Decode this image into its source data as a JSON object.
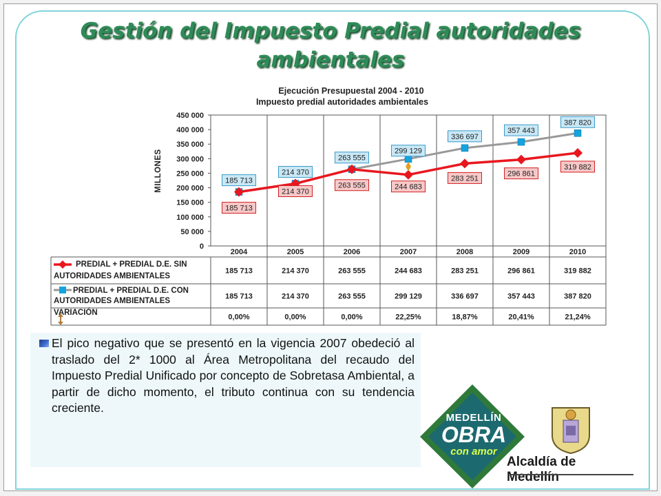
{
  "slide": {
    "title_line1": "Gestión del Impuesto Predial autoridades",
    "title_line2": "ambientales"
  },
  "chart_data": {
    "type": "line",
    "title": "Ejecución Presupuestal 2004 - 2010",
    "subtitle": "Impuesto predial autoridades ambientales",
    "ylabel": "MILLONES",
    "xlabel": "",
    "categories": [
      "2004",
      "2005",
      "2006",
      "2007",
      "2008",
      "2009",
      "2010"
    ],
    "ylim": [
      0,
      450000
    ],
    "yticks": [
      0,
      50000,
      100000,
      150000,
      200000,
      250000,
      300000,
      350000,
      400000,
      450000
    ],
    "ytick_labels": [
      "0",
      "50 000",
      "100 000",
      "150 000",
      "200 000",
      "250 000",
      "300 000",
      "350 000",
      "400 000",
      "450 000"
    ],
    "grid": "vertical",
    "series": [
      {
        "name": "PREDIAL + PREDIAL D.E. SIN AUTORIDADES AMBIENTALES",
        "name_line1": "PREDIAL + PREDIAL D.E. SIN",
        "name_line2": "AUTORIDADES AMBIENTALES",
        "color": "#e8171f",
        "marker": "diamond",
        "values": [
          185713,
          214370,
          263555,
          244683,
          283251,
          296861,
          319882
        ],
        "labels": [
          "185 713",
          "214 370",
          "263 555",
          "244 683",
          "283 251",
          "296 861",
          "319 882"
        ]
      },
      {
        "name": "PREDIAL + PREDIAL D.E. CON AUTORIDADES AMBIENTALES",
        "name_line1": "PREDIAL + PREDIAL D.E. CON",
        "name_line2": "AUTORIDADES AMBIENTALES",
        "color": "#999999",
        "marker_color": "#13a4e0",
        "marker": "square",
        "values": [
          185713,
          214370,
          263555,
          299129,
          336697,
          357443,
          387820
        ],
        "labels": [
          "185 713",
          "214 370",
          "263 555",
          "299 129",
          "336 697",
          "357 443",
          "387 820"
        ]
      },
      {
        "name": "VARIACIÓN",
        "color": "#b07a3a",
        "marker": "double-arrow",
        "values": [
          0.0,
          0.0,
          0.0,
          22.25,
          18.87,
          20.41,
          21.24
        ],
        "labels": [
          "0,00%",
          "0,00%",
          "0,00%",
          "22,25%",
          "18,87%",
          "20,41%",
          "21,24%"
        ]
      }
    ],
    "annotation": {
      "category": "2007",
      "from": 244683,
      "to": 299129
    }
  },
  "note": {
    "text": "El pico negativo que se presentó en la vigencia 2007 obedeció al traslado del 2* 1000 al Área Metropolitana del recaudo del Impuesto Predial Unificado por concepto de Sobretasa Ambiental, a partir de dicho momento, el tributo continua con su tendencia creciente."
  },
  "logos": {
    "line1": "MEDELLÍN",
    "line2": "OBRA",
    "line3": "con amor",
    "alcaldia": "Alcaldía de Medellín",
    "colors": {
      "badge_green": "#2f7a3a",
      "badge_teal": "#1c6a6f",
      "accent_lime": "#d8ff4f"
    }
  }
}
